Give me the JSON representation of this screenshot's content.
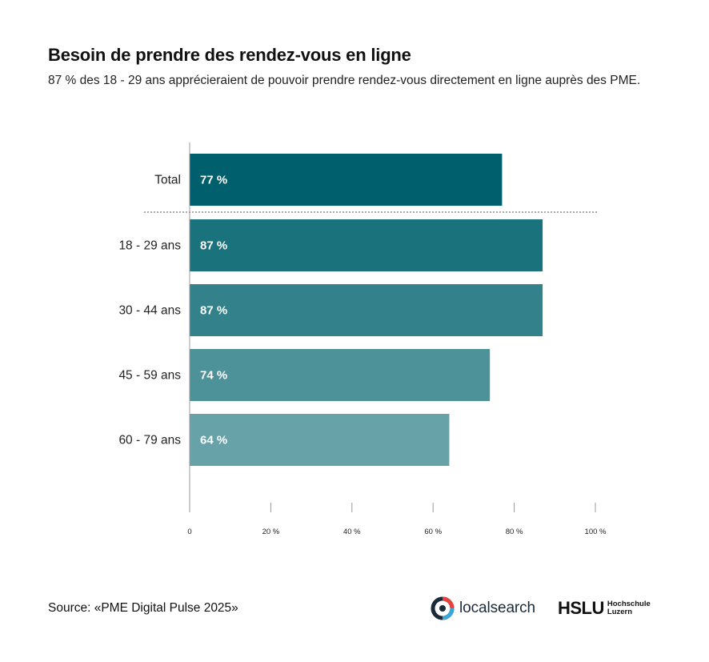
{
  "header": {
    "title": "Besoin de prendre des rendez-vous en ligne",
    "subtitle": "87 % des 18 - 29 ans apprécieraient de pouvoir prendre rendez-vous directement en ligne auprès des PME."
  },
  "chart_data": {
    "type": "bar",
    "orientation": "horizontal",
    "title": "Besoin de prendre des rendez-vous en ligne",
    "subtitle": "87 % des 18 - 29 ans apprécieraient de pouvoir prendre rendez-vous directement en ligne auprès des PME.",
    "xlabel": "",
    "ylabel": "",
    "xlim": [
      0,
      100
    ],
    "grid": false,
    "categories": [
      "Total",
      "18 - 29 ans",
      "30 - 44 ans",
      "45 - 59 ans",
      "60 - 79 ans"
    ],
    "values": [
      77,
      87,
      87,
      74,
      64
    ],
    "value_labels": [
      "77 %",
      "87 %",
      "87 %",
      "74 %",
      "64 %"
    ],
    "colors": [
      "#005f6d",
      "#1a727d",
      "#33828b",
      "#4d9299",
      "#66a2a8"
    ],
    "xticks": [
      0,
      20,
      40,
      60,
      80,
      100
    ],
    "xtick_labels": [
      "0",
      "20 %",
      "40 %",
      "60 %",
      "80 %",
      "100 %"
    ],
    "separator_after_category": "Total"
  },
  "footer": {
    "source": "Source: «PME Digital Pulse 2025»",
    "logos": {
      "localsearch": "localsearch",
      "hslu_main": "HSLU",
      "hslu_line1": "Hochschule",
      "hslu_line2": "Luzern"
    }
  }
}
